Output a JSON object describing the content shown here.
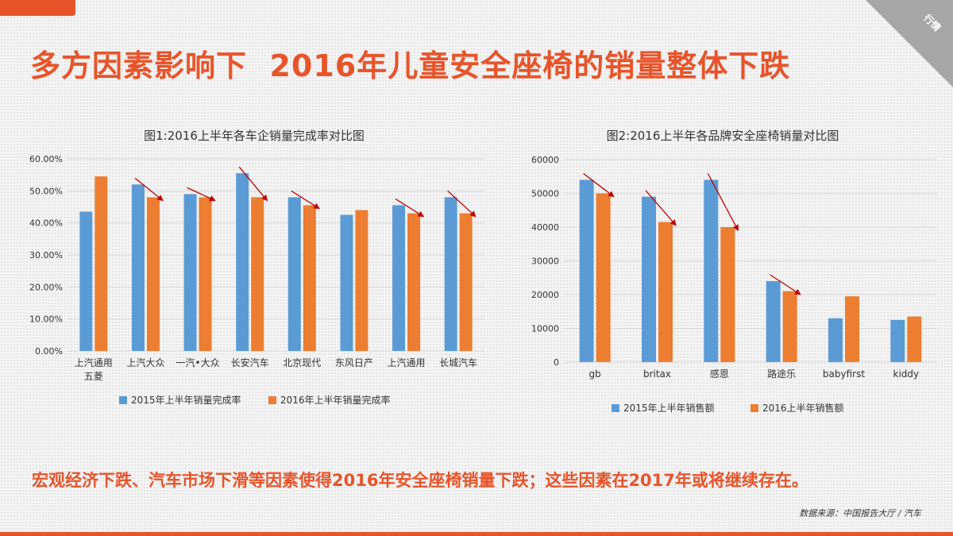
{
  "header": {
    "title": "多方因素影响下  2016年儿童安全座椅的销量整体下跌",
    "corner_label": "行情"
  },
  "colors": {
    "accent": "#e8542a",
    "series_2015": "#5b9bd5",
    "series_2016": "#ed7d31",
    "arrow": "#c00000"
  },
  "chart_data": [
    {
      "type": "bar",
      "title": "图1:2016上半年各车企销量完成率对比图",
      "categories": [
        [
          "上汽通用",
          "五菱"
        ],
        [
          "上汽大众"
        ],
        [
          "一汽•大众"
        ],
        [
          "长安汽车"
        ],
        [
          "北京现代"
        ],
        [
          "东风日产"
        ],
        [
          "上汽通用"
        ],
        [
          "长城汽车"
        ]
      ],
      "series": [
        {
          "name": "2015年上半年销量完成率",
          "values": [
            43.5,
            52.0,
            49.0,
            55.5,
            48.0,
            42.5,
            45.5,
            48.0
          ]
        },
        {
          "name": "2016年上半年销量完成率",
          "values": [
            54.5,
            48.0,
            48.0,
            48.0,
            45.5,
            44.0,
            43.0,
            43.0
          ]
        }
      ],
      "yticks": [
        "0.00%",
        "10.00%",
        "20.00%",
        "30.00%",
        "40.00%",
        "50.00%",
        "60.00%"
      ],
      "ylim": [
        0,
        60
      ],
      "grid": true,
      "legend": "bottom",
      "decline_arrows": [
        1,
        2,
        3,
        4,
        6,
        7
      ]
    },
    {
      "type": "bar",
      "title": "图2:2016上半年各品牌安全座椅销量对比图",
      "categories": [
        [
          "gb"
        ],
        [
          "britax"
        ],
        [
          "感恩"
        ],
        [
          "路途乐"
        ],
        [
          "babyfirst"
        ],
        [
          "kiddy"
        ]
      ],
      "series": [
        {
          "name": "2015年上半年销售额",
          "values": [
            54000,
            49000,
            54000,
            24000,
            13000,
            12500
          ]
        },
        {
          "name": "2016上半年销售额",
          "values": [
            50000,
            41500,
            40000,
            21000,
            19500,
            13500
          ]
        }
      ],
      "yticks": [
        "0",
        "10000",
        "20000",
        "30000",
        "40000",
        "50000",
        "60000"
      ],
      "ylim": [
        0,
        60000
      ],
      "grid": true,
      "legend": "bottom",
      "decline_arrows": [
        0,
        1,
        2,
        3
      ]
    }
  ],
  "conclusion": "宏观经济下跌、汽车市场下滑等因素使得2016年安全座椅销量下跌；这些因素在2017年或将继续存在。",
  "source": "数据来源：中国报告大厅 / 汽车"
}
